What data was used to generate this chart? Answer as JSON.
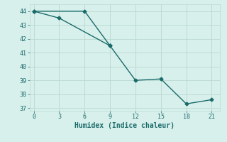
{
  "line1_x": [
    0,
    3,
    9,
    12,
    15,
    18,
    21
  ],
  "line1_y": [
    44,
    43.5,
    41.5,
    39.0,
    39.1,
    37.3,
    37.6
  ],
  "line2_x": [
    0,
    6,
    9
  ],
  "line2_y": [
    44,
    44,
    41.5
  ],
  "color": "#1a6b6b",
  "xlabel": "Humidex (Indice chaleur)",
  "bg_color": "#d8f0ec",
  "grid_color": "#b8d8d0",
  "xlim": [
    -0.5,
    22
  ],
  "ylim": [
    36.8,
    44.5
  ],
  "xticks": [
    0,
    3,
    6,
    9,
    12,
    15,
    18,
    21
  ],
  "yticks": [
    37,
    38,
    39,
    40,
    41,
    42,
    43,
    44
  ],
  "marker": "D",
  "markersize": 2.5,
  "linewidth": 1.0
}
